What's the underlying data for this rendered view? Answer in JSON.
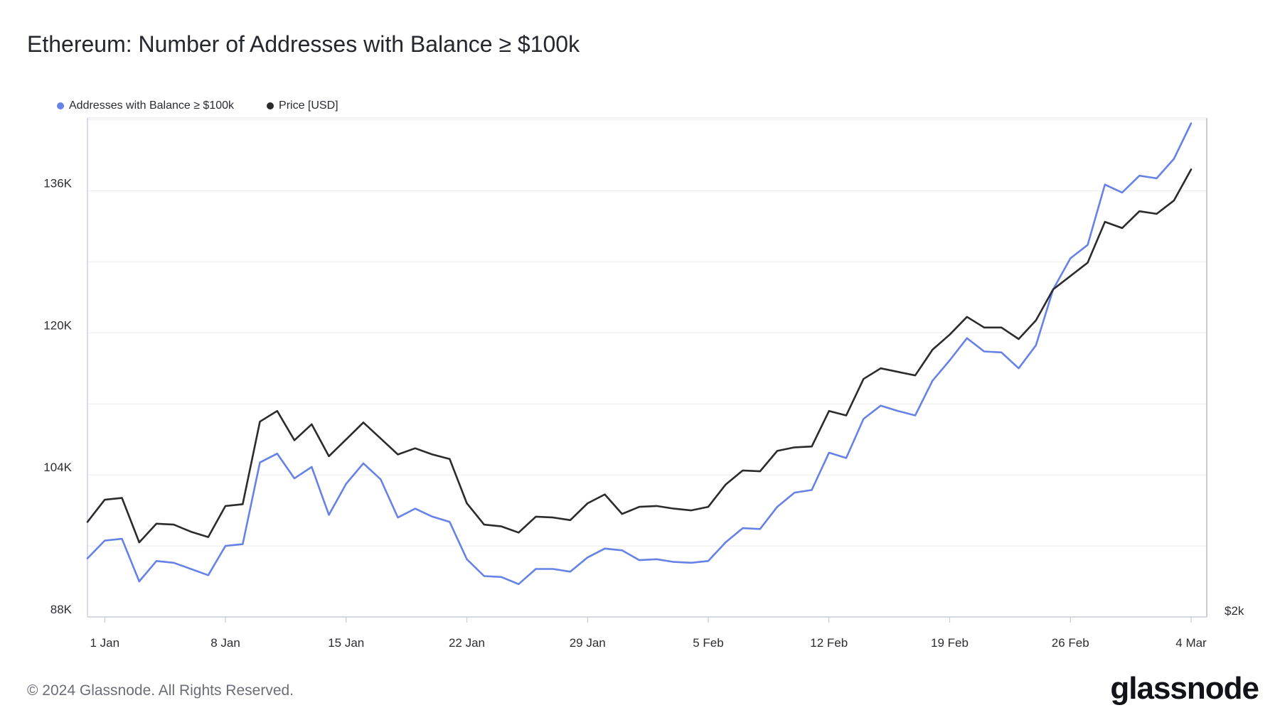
{
  "title": "Ethereum: Number of Addresses with Balance ≥ $100k",
  "footer": "© 2024 Glassnode. All Rights Reserved.",
  "logo": "glassnode",
  "colors": {
    "addresses": "#6682e6",
    "price": "#2b2b2e",
    "grid": "#ececee",
    "axis": "#c9cdf0"
  },
  "legend": [
    {
      "label": "Addresses with Balance ≥ $100k",
      "color": "#6682e6"
    },
    {
      "label": "Price [USD]",
      "color": "#2b2b2e"
    }
  ],
  "chart_data": {
    "type": "line",
    "grid": true,
    "legend_position": "top-left",
    "x_ticks": [
      "1 Jan",
      "8 Jan",
      "15 Jan",
      "22 Jan",
      "29 Jan",
      "5 Feb",
      "12 Feb",
      "19 Feb",
      "26 Feb",
      "4 Mar"
    ],
    "x_range": [
      "2023-12-31",
      "2024-03-04"
    ],
    "y_left": {
      "ticks": [
        88000,
        104000,
        120000,
        136000
      ],
      "tick_labels": [
        "88K",
        "104K",
        "120K",
        "136K"
      ],
      "range": [
        88000,
        144200
      ]
    },
    "y_right": {
      "ticks": [
        "$2k"
      ]
    },
    "series": [
      {
        "name": "Addresses with Balance ≥ $100k",
        "axis": "left",
        "values": [
          94600,
          96600,
          96800,
          92000,
          94300,
          94100,
          93400,
          92700,
          96000,
          96200,
          105400,
          106400,
          103600,
          104900,
          99500,
          103000,
          105300,
          103500,
          99200,
          100200,
          99300,
          98700,
          94500,
          92600,
          92500,
          91700,
          93400,
          93400,
          93100,
          94700,
          95700,
          95500,
          94400,
          94500,
          94200,
          94100,
          94300,
          96400,
          98000,
          97900,
          100400,
          102000,
          102300,
          106500,
          105900,
          110300,
          111800,
          111200,
          110700,
          114600,
          116900,
          119400,
          117900,
          117800,
          116000,
          118600,
          124900,
          128400,
          129900,
          136700,
          135800,
          137700,
          137400,
          139600,
          143600
        ]
      },
      {
        "name": "Price [USD]",
        "axis": "right",
        "values": [
          98700,
          101200,
          101400,
          96400,
          98500,
          98400,
          97600,
          97000,
          100500,
          100700,
          110000,
          111200,
          107900,
          109700,
          106100,
          108000,
          109900,
          108100,
          106300,
          107000,
          106300,
          105800,
          100800,
          98400,
          98200,
          97500,
          99300,
          99200,
          98900,
          100800,
          101800,
          99600,
          100400,
          100500,
          100200,
          100000,
          100400,
          102900,
          104500,
          104400,
          106700,
          107100,
          107200,
          111200,
          110700,
          114800,
          116000,
          115600,
          115200,
          118100,
          119800,
          121800,
          120600,
          120600,
          119300,
          121400,
          124900,
          126400,
          127900,
          132500,
          131800,
          133700,
          133400,
          134900,
          138400
        ]
      }
    ]
  }
}
